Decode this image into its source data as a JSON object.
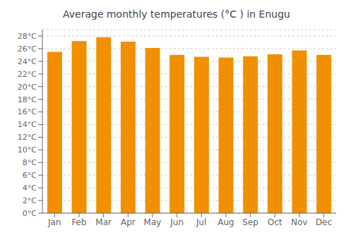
{
  "chart_data": {
    "type": "bar",
    "title": "Average monthly temperatures (°C ) in Enugu",
    "categories": [
      "Jan",
      "Feb",
      "Mar",
      "Apr",
      "May",
      "Jun",
      "Jul",
      "Aug",
      "Sep",
      "Oct",
      "Nov",
      "Dec"
    ],
    "values": [
      25.5,
      27.2,
      27.8,
      27.1,
      26.1,
      25.0,
      24.7,
      24.6,
      24.8,
      25.1,
      25.7,
      25.0
    ],
    "color": "#F09000",
    "ylim": [
      0,
      29
    ],
    "yticks": [
      {
        "value": 0,
        "label": "0°C"
      },
      {
        "value": 2,
        "label": "2°C"
      },
      {
        "value": 4,
        "label": "4°C"
      },
      {
        "value": 6,
        "label": "6°C"
      },
      {
        "value": 8,
        "label": "8°C"
      },
      {
        "value": 10,
        "label": "10°C"
      },
      {
        "value": 12,
        "label": "12°C"
      },
      {
        "value": 14,
        "label": "14°C"
      },
      {
        "value": 16,
        "label": "16°C"
      },
      {
        "value": 18,
        "label": "18°C"
      },
      {
        "value": 20,
        "label": "20°C"
      },
      {
        "value": 22,
        "label": "22°C"
      },
      {
        "value": 24,
        "label": "24°C"
      },
      {
        "value": 26,
        "label": "26°C"
      },
      {
        "value": 28,
        "label": "28°C"
      }
    ],
    "grid": true
  }
}
